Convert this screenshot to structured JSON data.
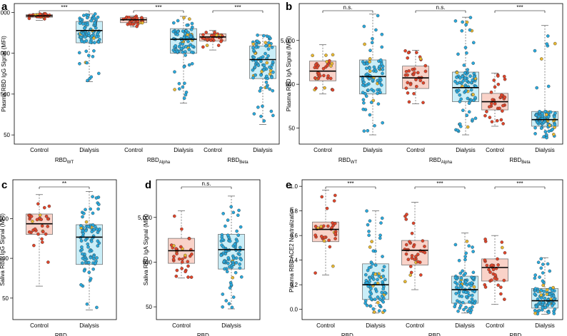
{
  "figure": {
    "colors": {
      "control_fill": "#f9d2c8",
      "dialysis_fill": "#c9eef8",
      "control_dot": "#e0452a",
      "dialysis_dot": "#29a9dd",
      "accent_dot": "#e8b832"
    }
  },
  "chart_data": [
    {
      "panel": "a",
      "type": "box",
      "scale": "log",
      "ylabel": "Plasma RBD IgG Signal (MFI)",
      "yticks": [
        50,
        500,
        5000,
        50000
      ],
      "ytick_labels": [
        "50",
        "500",
        "5,000",
        "50,000"
      ],
      "ylim": [
        35,
        70000
      ],
      "categories": [
        "Control",
        "Dialysis"
      ],
      "groups": [
        {
          "main": "RBD",
          "sub": "WT",
          "sig": "***",
          "boxes": [
            {
              "cat": "Control",
              "q1": 38000,
              "median": 41000,
              "q3": 44000,
              "lo": 32000,
              "hi": 47000,
              "n": 34
            },
            {
              "cat": "Dialysis",
              "q1": 9000,
              "median": 18000,
              "q3": 30000,
              "lo": 1000,
              "hi": 46000,
              "n": 88
            }
          ]
        },
        {
          "main": "RBD",
          "sub": "Alpha",
          "sig": "***",
          "boxes": [
            {
              "cat": "Control",
              "q1": 28000,
              "median": 33000,
              "q3": 37000,
              "lo": 22000,
              "hi": 41000,
              "n": 34
            },
            {
              "cat": "Dialysis",
              "q1": 5000,
              "median": 11000,
              "q3": 20000,
              "lo": 300,
              "hi": 40000,
              "n": 88
            }
          ]
        },
        {
          "main": "RBD",
          "sub": "Beta",
          "sig": "***",
          "boxes": [
            {
              "cat": "Control",
              "q1": 10000,
              "median": 12500,
              "q3": 15000,
              "lo": 6000,
              "hi": 18000,
              "n": 34
            },
            {
              "cat": "Dialysis",
              "q1": 1200,
              "median": 3500,
              "q3": 7500,
              "lo": 90,
              "hi": 14000,
              "n": 88
            }
          ]
        }
      ]
    },
    {
      "panel": "b",
      "type": "box",
      "scale": "log",
      "ylabel": "Plasma RBD IgA Signal (MFI)",
      "yticks": [
        50,
        500,
        5000
      ],
      "ytick_labels": [
        "50",
        "500",
        "5,000"
      ],
      "ylim": [
        25,
        30000
      ],
      "categories": [
        "Control",
        "Dialysis"
      ],
      "groups": [
        {
          "main": "RBD",
          "sub": "WT",
          "sig": "n.s.",
          "boxes": [
            {
              "cat": "Control",
              "q1": 600,
              "median": 1000,
              "q3": 1700,
              "lo": 300,
              "hi": 4000,
              "n": 34
            },
            {
              "cat": "Dialysis",
              "q1": 300,
              "median": 750,
              "q3": 1800,
              "lo": 35,
              "hi": 20000,
              "n": 88
            }
          ]
        },
        {
          "main": "RBD",
          "sub": "Alpha",
          "sig": "n.s.",
          "boxes": [
            {
              "cat": "Control",
              "q1": 400,
              "median": 700,
              "q3": 1300,
              "lo": 180,
              "hi": 3000,
              "n": 34
            },
            {
              "cat": "Dialysis",
              "q1": 200,
              "median": 420,
              "q3": 950,
              "lo": 35,
              "hi": 17000,
              "n": 88
            }
          ]
        },
        {
          "main": "RBD",
          "sub": "Beta",
          "sig": "***",
          "boxes": [
            {
              "cat": "Control",
              "q1": 130,
              "median": 200,
              "q3": 310,
              "lo": 55,
              "hi": 900,
              "n": 34
            },
            {
              "cat": "Dialysis",
              "q1": 55,
              "median": 78,
              "q3": 120,
              "lo": 30,
              "hi": 11000,
              "n": 88
            }
          ]
        }
      ]
    },
    {
      "panel": "c",
      "type": "box",
      "scale": "log",
      "ylabel": "Saliva RBD IgG Signal (MFI)",
      "yticks": [
        50,
        500,
        5000
      ],
      "ytick_labels": [
        "50",
        "500",
        "5,000"
      ],
      "ylim": [
        17,
        40000
      ],
      "categories": [
        "Control",
        "Dialysis"
      ],
      "groups": [
        {
          "main": "RBD",
          "sub": "WT",
          "sig": "**",
          "boxes": [
            {
              "cat": "Control",
              "q1": 2000,
              "median": 3700,
              "q3": 6500,
              "lo": 100,
              "hi": 20000,
              "n": 34
            },
            {
              "cat": "Dialysis",
              "q1": 350,
              "median": 1700,
              "q3": 3500,
              "lo": 25,
              "hi": 24000,
              "n": 88
            }
          ]
        }
      ]
    },
    {
      "panel": "d",
      "type": "box",
      "scale": "log",
      "ylabel": "Saliva RBD IgA Signal (MFI)",
      "yticks": [
        50,
        500,
        5000
      ],
      "ytick_labels": [
        "50",
        "500",
        "5,000"
      ],
      "ylim": [
        30,
        30000
      ],
      "categories": [
        "Control",
        "Dialysis"
      ],
      "groups": [
        {
          "main": "RBD",
          "sub": "WT",
          "sig": "n.s.",
          "boxes": [
            {
              "cat": "Control",
              "q1": 470,
              "median": 900,
              "q3": 1700,
              "lo": 220,
              "hi": 7000,
              "n": 34
            },
            {
              "cat": "Dialysis",
              "q1": 350,
              "median": 950,
              "q3": 2100,
              "lo": 45,
              "hi": 15000,
              "n": 88
            }
          ]
        }
      ]
    },
    {
      "panel": "e",
      "type": "box",
      "scale": "linear",
      "ylabel": "Plasma RBD ACE2 Neutralization",
      "yticks": [
        0.0,
        0.2,
        0.4,
        0.6,
        0.8,
        1.0
      ],
      "ytick_labels": [
        "0.0",
        "0.2",
        "0.4",
        "0.6",
        "0.8",
        "1.0"
      ],
      "ylim": [
        -0.06,
        1.03
      ],
      "categories": [
        "Control",
        "Dialysis"
      ],
      "groups": [
        {
          "main": "RBD",
          "sub": "WT",
          "sig": "***",
          "boxes": [
            {
              "cat": "Control",
              "q1": 0.55,
              "median": 0.65,
              "q3": 0.71,
              "lo": 0.28,
              "hi": 0.97,
              "n": 34
            },
            {
              "cat": "Dialysis",
              "q1": 0.08,
              "median": 0.2,
              "q3": 0.37,
              "lo": -0.03,
              "hi": 0.8,
              "n": 88
            }
          ]
        },
        {
          "main": "RBD",
          "sub": "Alpha",
          "sig": "***",
          "boxes": [
            {
              "cat": "Control",
              "q1": 0.36,
              "median": 0.48,
              "q3": 0.56,
              "lo": 0.16,
              "hi": 0.87,
              "n": 34
            },
            {
              "cat": "Dialysis",
              "q1": 0.05,
              "median": 0.16,
              "q3": 0.27,
              "lo": -0.03,
              "hi": 0.62,
              "n": 88
            }
          ]
        },
        {
          "main": "RBD",
          "sub": "Beta",
          "sig": "***",
          "boxes": [
            {
              "cat": "Control",
              "q1": 0.23,
              "median": 0.34,
              "q3": 0.41,
              "lo": 0.04,
              "hi": 0.6,
              "n": 34
            },
            {
              "cat": "Dialysis",
              "q1": 0.01,
              "median": 0.07,
              "q3": 0.17,
              "lo": -0.04,
              "hi": 0.42,
              "n": 88
            }
          ]
        }
      ]
    }
  ]
}
